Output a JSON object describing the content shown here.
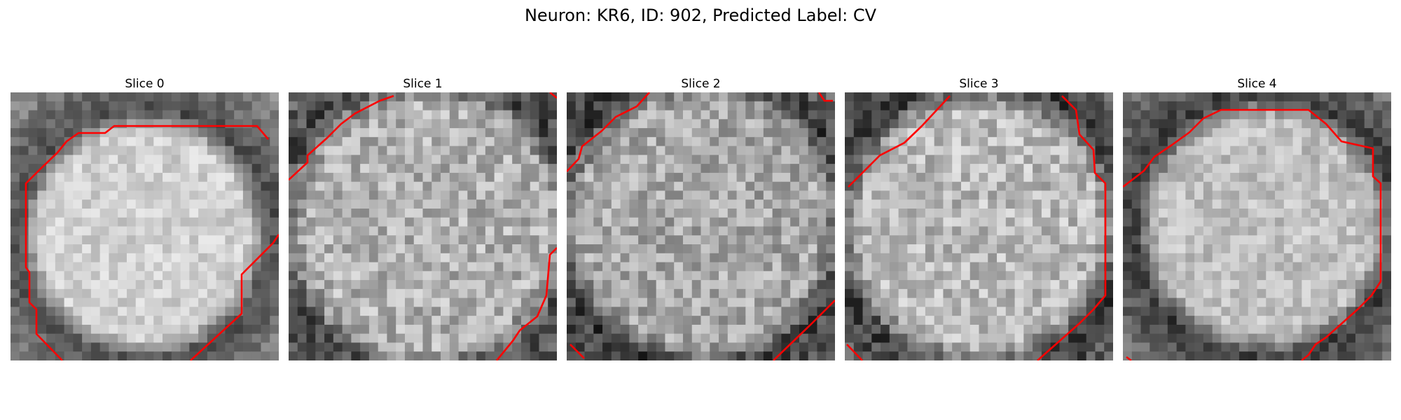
{
  "figure": {
    "title": "Neuron: KR6, ID: 902, Predicted Label: CV",
    "contour_color": "#ff0000"
  },
  "slices": [
    {
      "title": "Slice 0"
    },
    {
      "title": "Slice 1"
    },
    {
      "title": "Slice 2"
    },
    {
      "title": "Slice 3"
    },
    {
      "title": "Slice 4"
    }
  ]
}
